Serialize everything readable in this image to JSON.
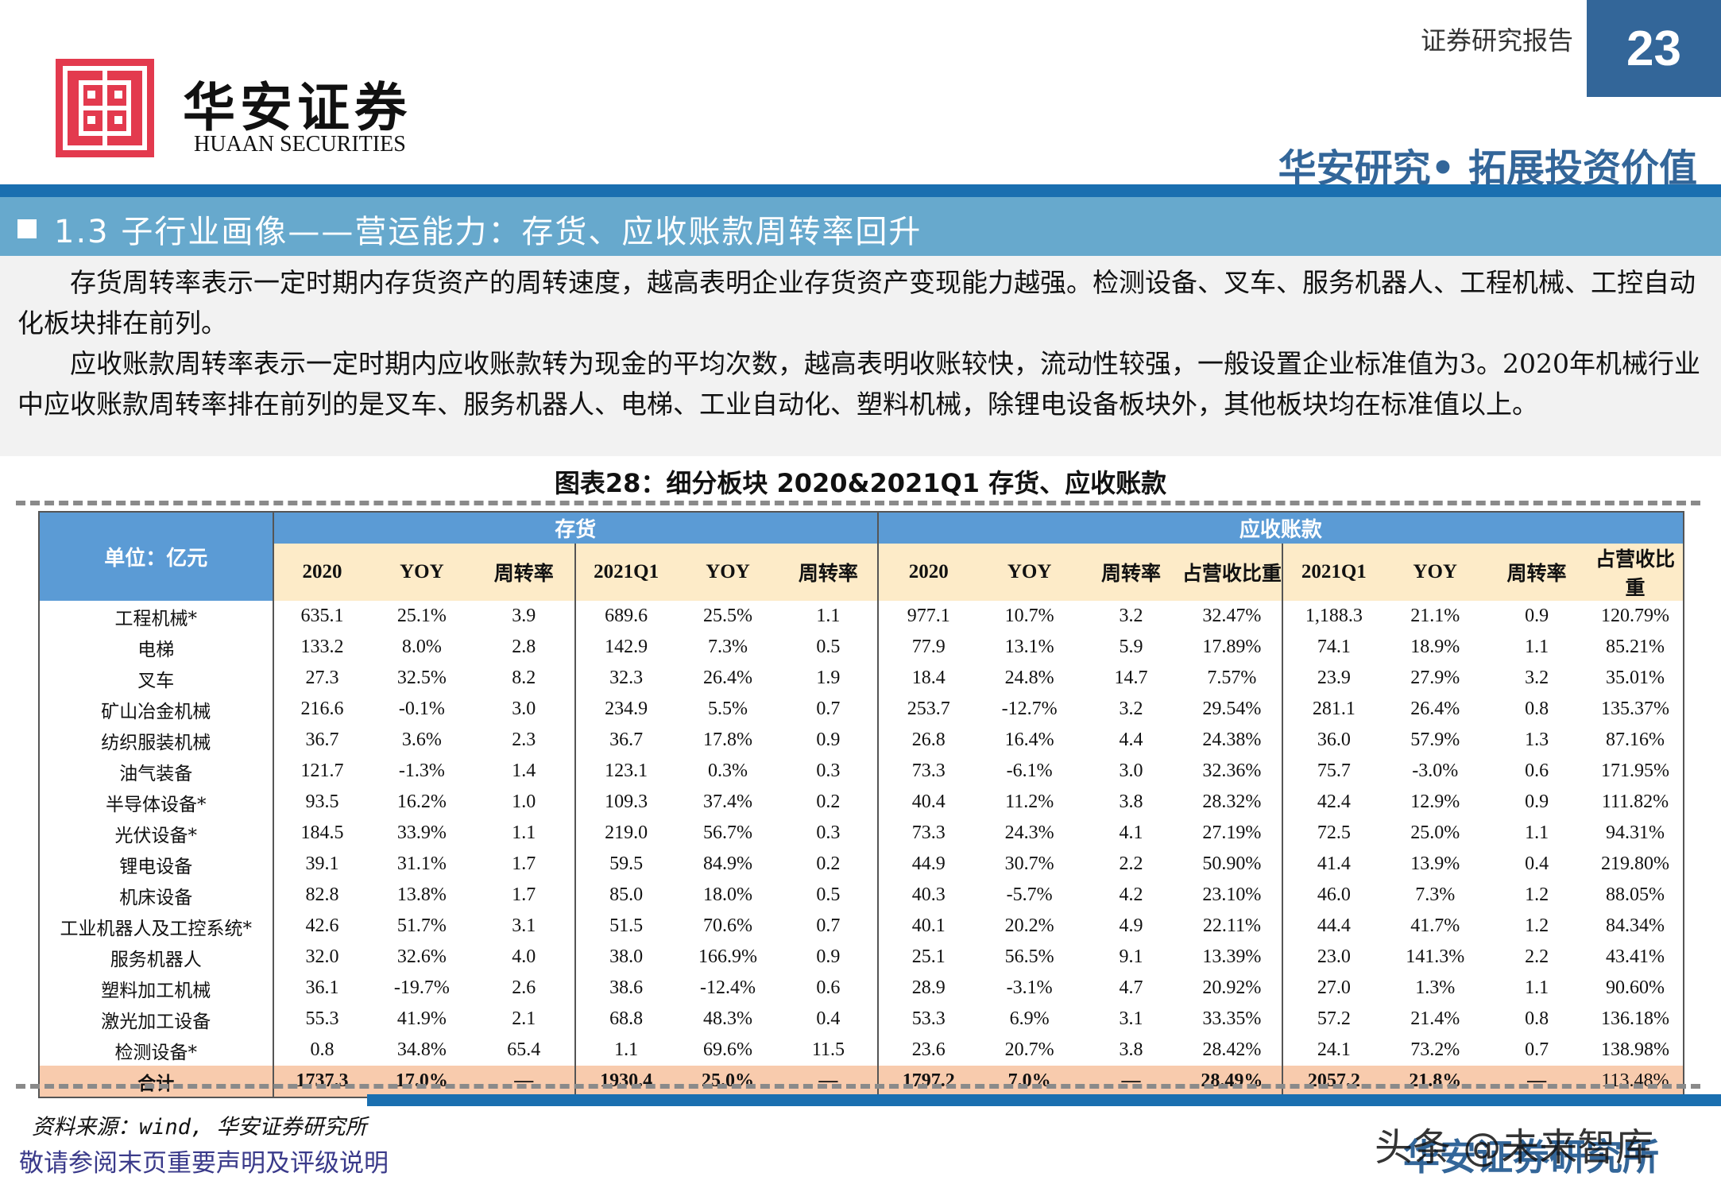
{
  "header": {
    "brand_cn": "华安证券",
    "brand_en": "HUAAN SECURITIES",
    "report_type": "证券研究报告",
    "page_number": "23",
    "slogan": "华安研究• 拓展投资价值"
  },
  "section": {
    "title": "1.3 子行业画像——营运能力：存货、应收账款周转率回升"
  },
  "paragraphs": [
    "　　存货周转率表示一定时期内存货资产的周转速度，越高表明企业存货资产变现能力越强。检测设备、叉车、服务机器人、工程机械、工控自动化板块排在前列。",
    "　　应收账款周转率表示一定时期内应收账款转为现金的平均次数，越高表明收账较快，流动性较强，一般设置企业标准值为3。2020年机械行业中应收账款周转率排在前列的是叉车、服务机器人、电梯、工业自动化、塑料机械，除锂电设备板块外，其他板块均在标准值以上。"
  ],
  "table": {
    "caption": "图表28：细分板块 2020&2021Q1 存货、应收账款",
    "unit_label": "单位：亿元",
    "group_inventory": "存货",
    "group_receivables": "应收账款",
    "inventory_columns": [
      "2020",
      "YOY",
      "周转率",
      "2021Q1",
      "YOY",
      "周转率"
    ],
    "receivable_columns": [
      "2020",
      "YOY",
      "周转率",
      "占营收比重",
      "2021Q1",
      "YOY",
      "周转率",
      "占营收比重"
    ],
    "rows": [
      {
        "name": "工程机械*",
        "inv": [
          "635.1",
          "25.1%",
          "3.9",
          "689.6",
          "25.5%",
          "1.1"
        ],
        "rec": [
          "977.1",
          "10.7%",
          "3.2",
          "32.47%",
          "1,188.3",
          "21.1%",
          "0.9",
          "120.79%"
        ]
      },
      {
        "name": "电梯",
        "inv": [
          "133.2",
          "8.0%",
          "2.8",
          "142.9",
          "7.3%",
          "0.5"
        ],
        "rec": [
          "77.9",
          "13.1%",
          "5.9",
          "17.89%",
          "74.1",
          "18.9%",
          "1.1",
          "85.21%"
        ]
      },
      {
        "name": "叉车",
        "inv": [
          "27.3",
          "32.5%",
          "8.2",
          "32.3",
          "26.4%",
          "1.9"
        ],
        "rec": [
          "18.4",
          "24.8%",
          "14.7",
          "7.57%",
          "23.9",
          "27.9%",
          "3.2",
          "35.01%"
        ]
      },
      {
        "name": "矿山冶金机械",
        "inv": [
          "216.6",
          "-0.1%",
          "3.0",
          "234.9",
          "5.5%",
          "0.7"
        ],
        "rec": [
          "253.7",
          "-12.7%",
          "3.2",
          "29.54%",
          "281.1",
          "26.4%",
          "0.8",
          "135.37%"
        ]
      },
      {
        "name": "纺织服装机械",
        "inv": [
          "36.7",
          "3.6%",
          "2.3",
          "36.7",
          "17.8%",
          "0.9"
        ],
        "rec": [
          "26.8",
          "16.4%",
          "4.4",
          "24.38%",
          "36.0",
          "57.9%",
          "1.3",
          "87.16%"
        ]
      },
      {
        "name": "油气装备",
        "inv": [
          "121.7",
          "-1.3%",
          "1.4",
          "123.1",
          "0.3%",
          "0.3"
        ],
        "rec": [
          "73.3",
          "-6.1%",
          "3.0",
          "32.36%",
          "75.7",
          "-3.0%",
          "0.6",
          "171.95%"
        ]
      },
      {
        "name": "半导体设备*",
        "inv": [
          "93.5",
          "16.2%",
          "1.0",
          "109.3",
          "37.4%",
          "0.2"
        ],
        "rec": [
          "40.4",
          "11.2%",
          "3.8",
          "28.32%",
          "42.4",
          "12.9%",
          "0.9",
          "111.82%"
        ]
      },
      {
        "name": "光伏设备*",
        "inv": [
          "184.5",
          "33.9%",
          "1.1",
          "219.0",
          "56.7%",
          "0.3"
        ],
        "rec": [
          "73.3",
          "24.3%",
          "4.1",
          "27.19%",
          "72.5",
          "25.0%",
          "1.1",
          "94.31%"
        ]
      },
      {
        "name": "锂电设备",
        "inv": [
          "39.1",
          "31.1%",
          "1.7",
          "59.5",
          "84.9%",
          "0.2"
        ],
        "rec": [
          "44.9",
          "30.7%",
          "2.2",
          "50.90%",
          "41.4",
          "13.9%",
          "0.4",
          "219.80%"
        ]
      },
      {
        "name": "机床设备",
        "inv": [
          "82.8",
          "13.8%",
          "1.7",
          "85.0",
          "18.0%",
          "0.5"
        ],
        "rec": [
          "40.3",
          "-5.7%",
          "4.2",
          "23.10%",
          "46.0",
          "7.3%",
          "1.2",
          "88.05%"
        ]
      },
      {
        "name": "工业机器人及工控系统*",
        "inv": [
          "42.6",
          "51.7%",
          "3.1",
          "51.5",
          "70.6%",
          "0.7"
        ],
        "rec": [
          "40.1",
          "20.2%",
          "4.9",
          "22.11%",
          "44.4",
          "41.7%",
          "1.2",
          "84.34%"
        ]
      },
      {
        "name": "服务机器人",
        "inv": [
          "32.0",
          "32.6%",
          "4.0",
          "38.0",
          "166.9%",
          "0.9"
        ],
        "rec": [
          "25.1",
          "56.5%",
          "9.1",
          "13.39%",
          "23.0",
          "141.3%",
          "2.2",
          "43.41%"
        ]
      },
      {
        "name": "塑料加工机械",
        "inv": [
          "36.1",
          "-19.7%",
          "2.6",
          "38.6",
          "-12.4%",
          "0.6"
        ],
        "rec": [
          "28.9",
          "-3.1%",
          "4.7",
          "20.92%",
          "27.0",
          "1.3%",
          "1.1",
          "90.60%"
        ]
      },
      {
        "name": "激光加工设备",
        "inv": [
          "55.3",
          "41.9%",
          "2.1",
          "68.8",
          "48.3%",
          "0.4"
        ],
        "rec": [
          "53.3",
          "6.9%",
          "3.1",
          "33.35%",
          "57.2",
          "21.4%",
          "0.8",
          "136.18%"
        ]
      },
      {
        "name": "检测设备*",
        "inv": [
          "0.8",
          "34.8%",
          "65.4",
          "1.1",
          "69.6%",
          "11.5"
        ],
        "rec": [
          "23.6",
          "20.7%",
          "3.8",
          "28.42%",
          "24.1",
          "73.2%",
          "0.7",
          "138.98%"
        ]
      }
    ],
    "total": {
      "name": "合计",
      "inv": [
        "1737.3",
        "17.0%",
        "—",
        "1930.4",
        "25.0%",
        "—"
      ],
      "rec": [
        "1797.2",
        "7.0%",
        "—",
        "28.49%",
        "2057.2",
        "21.8%",
        "—",
        "113.48%"
      ]
    }
  },
  "footer": {
    "source": "资料来源：wind, 华安证券研究所",
    "disclaimer": "敬请参阅末页重要声明及评级说明",
    "brand": "华安证券研究所",
    "watermark": "头条 @未来智库"
  },
  "colors": {
    "brand_blue": "#336699",
    "bar_blue": "#1a6fb0",
    "section_blue": "#67a9cd",
    "table_header_blue": "#5b9bd5",
    "subheader_cream": "#fdebc8",
    "total_row_peach": "#f8cbad",
    "logo_red": "#e33a4e"
  }
}
